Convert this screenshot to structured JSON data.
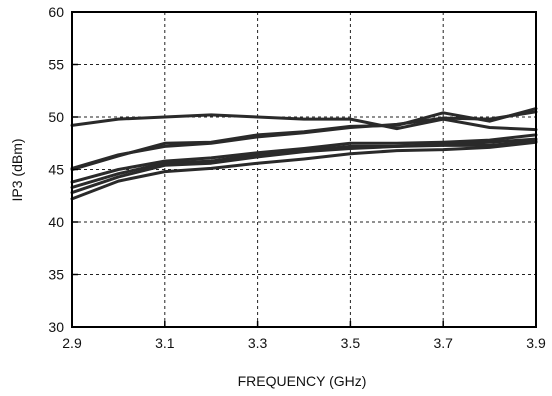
{
  "chart_data": {
    "type": "line",
    "title": "",
    "xlabel": "FREQUENCY (GHz)",
    "ylabel": "IP3  (dBm)",
    "xlim": [
      2.9,
      3.9
    ],
    "ylim": [
      30,
      60
    ],
    "x_ticks": [
      2.9,
      3.1,
      3.3,
      3.5,
      3.7,
      3.9
    ],
    "x_tick_labels": [
      "2.9",
      "3.1",
      "3.3",
      "3.5",
      "3.7",
      "3.9"
    ],
    "y_ticks": [
      30,
      35,
      40,
      45,
      50,
      55,
      60
    ],
    "y_tick_labels": [
      "30",
      "35",
      "40",
      "45",
      "50",
      "55",
      "60"
    ],
    "grid": true,
    "x": [
      2.9,
      3.0,
      3.1,
      3.2,
      3.3,
      3.4,
      3.5,
      3.6,
      3.7,
      3.8,
      3.9
    ],
    "series": [
      {
        "values": [
          49.2,
          49.8,
          50.0,
          50.2,
          50.0,
          49.8,
          49.8,
          48.9,
          49.8,
          49.0,
          48.8
        ]
      },
      {
        "values": [
          45.0,
          46.3,
          47.5,
          47.6,
          48.3,
          48.6,
          49.1,
          49.2,
          50.4,
          49.6,
          50.8
        ]
      },
      {
        "values": [
          45.1,
          46.4,
          47.2,
          47.5,
          48.1,
          48.5,
          49.0,
          49.3,
          49.9,
          49.8,
          50.5
        ]
      },
      {
        "values": [
          43.8,
          45.0,
          45.8,
          46.1,
          46.6,
          47.0,
          47.5,
          47.5,
          47.6,
          47.8,
          48.3
        ]
      },
      {
        "values": [
          43.3,
          44.6,
          45.6,
          45.8,
          46.4,
          46.8,
          47.2,
          47.2,
          47.4,
          47.6,
          47.9
        ]
      },
      {
        "values": [
          42.8,
          44.3,
          45.4,
          45.6,
          46.2,
          46.7,
          47.0,
          47.2,
          47.3,
          47.3,
          47.7
        ]
      },
      {
        "values": [
          42.2,
          43.9,
          44.8,
          45.1,
          45.6,
          46.0,
          46.5,
          46.8,
          46.9,
          47.1,
          47.6
        ]
      }
    ]
  }
}
